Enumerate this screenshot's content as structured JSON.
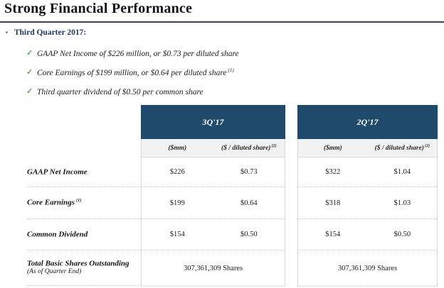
{
  "page": {
    "title": "Strong Financial Performance"
  },
  "icons": {
    "square_bullet": "▪",
    "check": "✓"
  },
  "bullets": {
    "heading": "Third Quarter 2017:",
    "items": [
      "GAAP Net Income of $226 million, or $0.73 per diluted share",
      "Core Earnings of $199 million, or $0.64 per diluted share",
      "Third quarter dividend of $0.50 per common share"
    ],
    "item_superscripts": [
      "",
      "(1)",
      ""
    ]
  },
  "table": {
    "row_labels": [
      {
        "label": "GAAP Net Income",
        "sup": "",
        "sub": ""
      },
      {
        "label": "Core Earnings",
        "sup": "(1)",
        "sub": ""
      },
      {
        "label": "Common Dividend",
        "sup": "",
        "sub": ""
      },
      {
        "label": "Total Basic Shares Outstanding",
        "sup": "",
        "sub": "(As of Quarter End)"
      }
    ],
    "columns": [
      "($mm)",
      "($ / diluted share)"
    ],
    "col2_sup": "(2)",
    "quarters": [
      {
        "title": "3Q'17",
        "rows": [
          [
            "$226",
            "$0.73"
          ],
          [
            "$199",
            "$0.64"
          ],
          [
            "$154",
            "$0.50"
          ]
        ],
        "shares": "307,361,309 Shares"
      },
      {
        "title": "2Q'17",
        "rows": [
          [
            "$322",
            "$1.04"
          ],
          [
            "$318",
            "$1.03"
          ],
          [
            "$154",
            "$0.50"
          ]
        ],
        "shares": "307,361,309 Shares"
      }
    ]
  },
  "colors": {
    "header_bg": "#1F4A6B",
    "subheader_bg": "#F2F2F2",
    "table_border": "#D9D9D9",
    "heading_navy": "#1F3864",
    "check_green": "#5BA85A",
    "title_rule": "#39414D"
  }
}
